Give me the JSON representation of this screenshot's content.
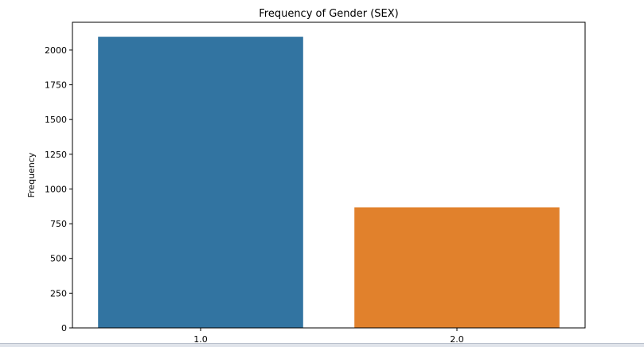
{
  "chart_data": {
    "type": "bar",
    "title": "Frequency of Gender (SEX)",
    "xlabel": "",
    "ylabel": "Frequency",
    "categories": [
      "1.0",
      "2.0"
    ],
    "values": [
      2096,
      868
    ],
    "colors": [
      "#3274a1",
      "#e1812c"
    ],
    "ylim": [
      0,
      2200
    ],
    "yticks": [
      0,
      250,
      500,
      750,
      1000,
      1250,
      1500,
      1750,
      2000
    ],
    "grid": false,
    "legend": "none"
  }
}
